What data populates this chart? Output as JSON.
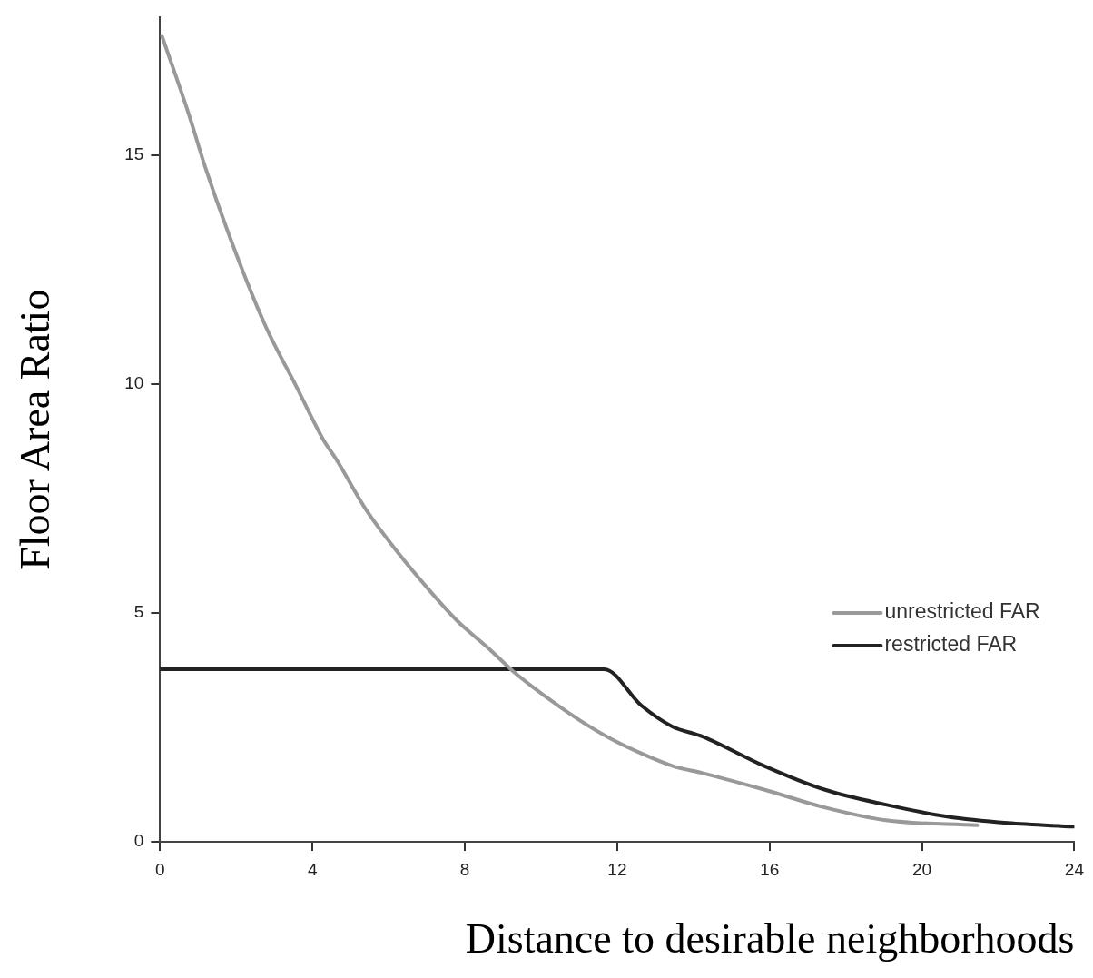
{
  "chart_data": {
    "type": "line",
    "xlabel": "Distance to desirable neighborhoods",
    "ylabel": "Floor Area Ratio",
    "xlim": [
      0,
      24
    ],
    "xticks": [
      0,
      4,
      8,
      12,
      16,
      20,
      24
    ],
    "ylim": [
      0,
      18
    ],
    "yticks": [
      0,
      5,
      10,
      15
    ],
    "grid": false,
    "legend": "right",
    "marker": "none",
    "line_style": "solid",
    "series": [
      {
        "name": "unrestricted FAR",
        "color": "#999999",
        "x": [
          0.05,
          0.77,
          1.18,
          1.97,
          2.77,
          3.58,
          4.3,
          4.62,
          5.41,
          6.23,
          7.02,
          7.82,
          8.63,
          9.26,
          10.22,
          11.04,
          11.83,
          12.63,
          13.44,
          14.24,
          15.85,
          17.44,
          19.05,
          21.45
        ],
        "values": [
          17.6,
          15.85,
          14.75,
          12.9,
          11.26,
          9.94,
          8.76,
          8.36,
          7.25,
          6.33,
          5.54,
          4.81,
          4.22,
          3.73,
          3.11,
          2.64,
          2.25,
          1.93,
          1.66,
          1.5,
          1.14,
          0.75,
          0.47,
          0.36
        ]
      },
      {
        "name": "restricted FAR",
        "color": "#222222",
        "x": [
          0,
          11.66,
          12.63,
          13.44,
          14.24,
          15.85,
          17.44,
          19.05,
          20.66,
          22.25,
          23.98
        ],
        "values": [
          3.77,
          3.77,
          2.98,
          2.52,
          2.3,
          1.66,
          1.14,
          0.81,
          0.55,
          0.41,
          0.33
        ]
      }
    ]
  }
}
